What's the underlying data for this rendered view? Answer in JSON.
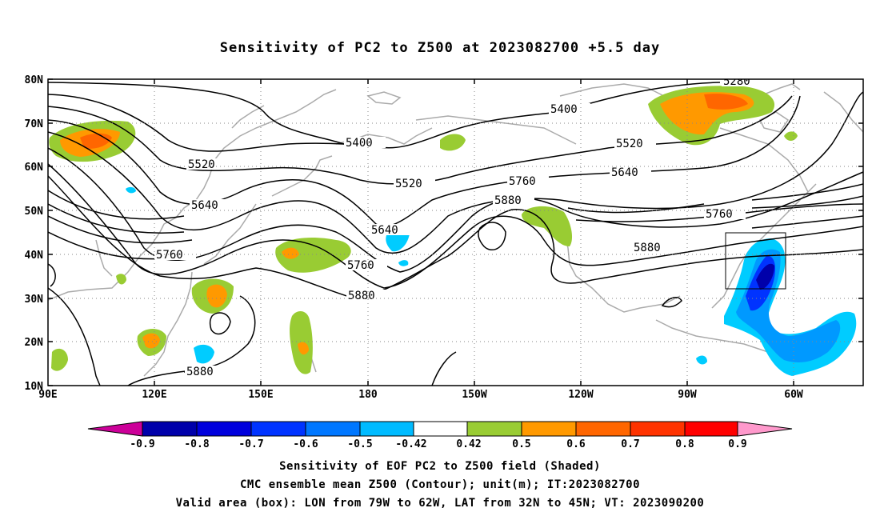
{
  "title": "Sensitivity of PC2 to Z500 at 2023082700 +5.5 day",
  "map": {
    "lat_ticks": [
      "80N",
      "70N",
      "60N",
      "50N",
      "40N",
      "30N",
      "20N",
      "10N"
    ],
    "lon_ticks": [
      "90E",
      "120E",
      "150E",
      "180",
      "150W",
      "120W",
      "90W",
      "60W"
    ],
    "contour_labels": [
      "5280",
      "5400",
      "5400",
      "5520",
      "5520",
      "5520",
      "5640",
      "5640",
      "5640",
      "5760",
      "5760",
      "5760",
      "5760",
      "5880",
      "5880",
      "5880",
      "5880"
    ],
    "shade_colors": {
      "positive_light": "#99cc33",
      "positive_mid": "#ff9900",
      "positive_strong": "#ff6600",
      "negative_light": "#00ccff",
      "negative_mid": "#0099ff",
      "negative_strong": "#0033ff",
      "negative_deep": "#0000aa"
    },
    "box": {
      "lon": "79W to 62W",
      "lat": "32N to 45N"
    }
  },
  "colorbar": {
    "labels": [
      "-0.9",
      "-0.8",
      "-0.7",
      "-0.6",
      "-0.5",
      "-0.42",
      "0.42",
      "0.5",
      "0.6",
      "0.7",
      "0.8",
      "0.9"
    ],
    "colors": [
      "#cc0099",
      "#0000aa",
      "#0000dd",
      "#0033ff",
      "#0077ff",
      "#00bbff",
      "#ffffff",
      "#99cc33",
      "#ff9900",
      "#ff6600",
      "#ff3300",
      "#ff0000",
      "#ff99cc"
    ]
  },
  "caption": {
    "line1": "Sensitivity of EOF PC2 to Z500 field (Shaded)",
    "line2": "CMC ensemble mean Z500 (Contour); unit(m); IT:2023082700",
    "line3": "Valid area (box): LON from 79W to 62W, LAT from 32N to 45N; VT: 2023090200"
  }
}
